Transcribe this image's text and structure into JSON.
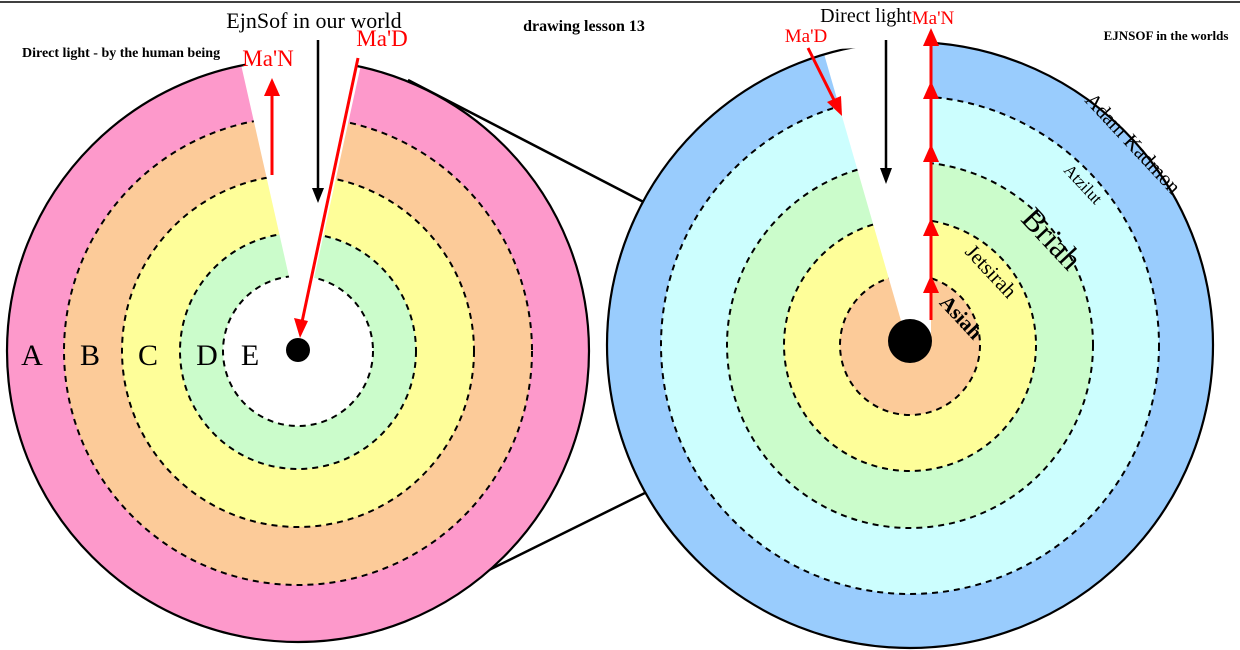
{
  "header": {
    "left_caption": "Direct light - by the human being",
    "left_title": "EjnSof in our world",
    "center_title": "drawing lesson 13",
    "right_title": "Direct light",
    "right_caption": "EJNSOF in the worlds"
  },
  "left_diagram": {
    "arrow_up_label": "Ma'N",
    "arrow_down_label": "Ma'D",
    "ring_labels": [
      "A",
      "B",
      "C",
      "D",
      "E"
    ],
    "ring_colors": [
      "#fd99cb",
      "#fccb99",
      "#fefe99",
      "#cbfccb",
      "#ffffff"
    ]
  },
  "right_diagram": {
    "arrow_down_label": "Ma'D",
    "arrow_up_label": "Ma'N",
    "world_labels": [
      "Adam Kadmon",
      "Atzilut",
      "Briah",
      "Jetsirah",
      "Asiah"
    ],
    "ring_colors": [
      "#99ccfd",
      "#ccfefe",
      "#cbfccb",
      "#fefe99",
      "#fccb99"
    ]
  },
  "colors": {
    "arrow_red": "#ff0000",
    "line_black": "#000000"
  }
}
